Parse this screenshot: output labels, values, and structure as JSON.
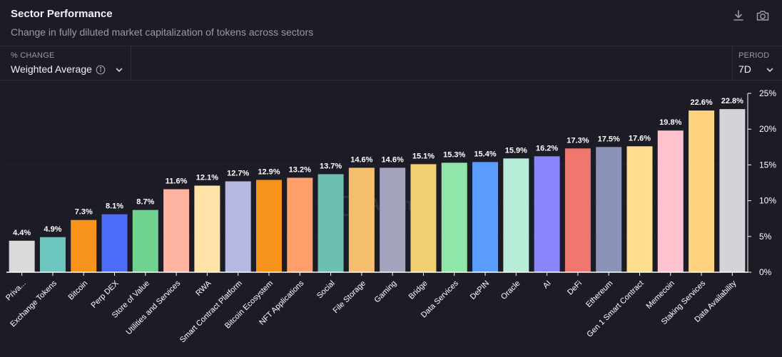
{
  "header": {
    "title": "Sector Performance",
    "subtitle": "Change in fully diluted market capitalization of tokens across sectors",
    "download_icon": "download-icon",
    "screenshot_icon": "camera-icon"
  },
  "controls": {
    "change": {
      "label": "% CHANGE",
      "value": "Weighted Average"
    },
    "period": {
      "label": "PERIOD",
      "value": "7D"
    }
  },
  "watermark": {
    "text": "Artemis"
  },
  "chart_data": {
    "type": "bar",
    "title": "",
    "xlabel": "",
    "ylabel": "",
    "ylim": [
      0,
      25
    ],
    "yticks": [
      "0%",
      "5%",
      "10%",
      "15%",
      "20%",
      "25%"
    ],
    "grid": true,
    "y_axis_position": "right",
    "categories": [
      "Priva...",
      "Exchange Tokens",
      "Bitcoin",
      "Perp DEX",
      "Store of Value",
      "Utilities and Services",
      "RWA",
      "Smart Contract Platform",
      "Bitcoin Ecosystem",
      "NFT Applications",
      "Social",
      "File Storage",
      "Gaming",
      "Bridge",
      "Data Services",
      "DePIN",
      "Oracle",
      "AI",
      "DeFi",
      "Ethereum",
      "Gen 1 Smart Contract",
      "Memecoin",
      "Staking Services",
      "Data Availability"
    ],
    "values": [
      4.4,
      4.9,
      7.3,
      8.1,
      8.7,
      11.6,
      12.1,
      12.7,
      12.9,
      13.2,
      13.7,
      14.6,
      14.6,
      15.1,
      15.3,
      15.4,
      15.9,
      16.2,
      17.3,
      17.5,
      17.6,
      19.8,
      22.6,
      22.8
    ],
    "labels": [
      "4.4%",
      "4.9%",
      "7.3%",
      "8.1%",
      "8.7%",
      "11.6%",
      "12.1%",
      "12.7%",
      "12.9%",
      "13.2%",
      "13.7%",
      "14.6%",
      "14.6%",
      "15.1%",
      "15.3%",
      "15.4%",
      "15.9%",
      "16.2%",
      "17.3%",
      "17.5%",
      "17.6%",
      "19.8%",
      "22.6%",
      "22.8%"
    ],
    "colors": [
      "#d9d9d9",
      "#6cc5bf",
      "#f7931a",
      "#4a6cf7",
      "#6fd38f",
      "#ffb4a2",
      "#ffe2a8",
      "#b5b8e0",
      "#f7931a",
      "#ff9f6b",
      "#6bc0b3",
      "#f6bf6e",
      "#a3a3bd",
      "#f1d074",
      "#8fe6a8",
      "#5b9cff",
      "#b7ecd7",
      "#8a84ff",
      "#ef7770",
      "#8a92b8",
      "#ffdf8e",
      "#ffc2cf",
      "#ffd27f",
      "#d4d4d8"
    ]
  }
}
